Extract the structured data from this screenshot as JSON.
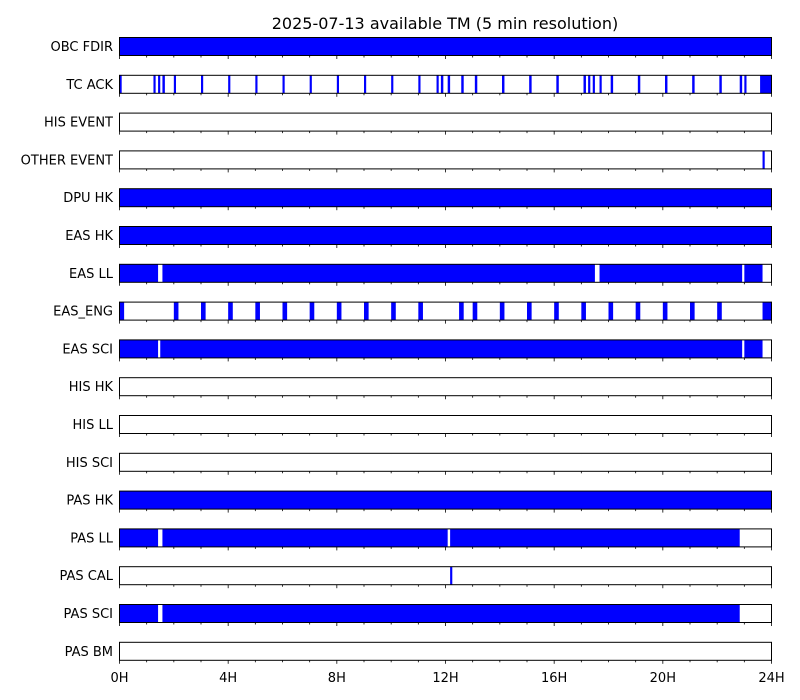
{
  "chart_data": {
    "type": "heatmap",
    "title": "2025-07-13 available TM (5 min resolution)",
    "x_unit": "hour",
    "xlim": [
      0,
      24
    ],
    "x_ticks": [
      0,
      4,
      8,
      12,
      16,
      20,
      24
    ],
    "x_tick_labels": [
      "0H",
      "4H",
      "8H",
      "12H",
      "16H",
      "20H",
      "24H"
    ],
    "colors": {
      "available": "#0000ff",
      "unavailable": "#ffffff",
      "border": "#000000"
    },
    "rows": [
      {
        "label": "OBC FDIR",
        "available": [
          [
            0,
            24
          ]
        ]
      },
      {
        "label": "TC ACK",
        "available": [
          [
            0.0,
            0.08
          ],
          [
            1.25,
            1.33
          ],
          [
            1.42,
            1.5
          ],
          [
            1.58,
            1.67
          ],
          [
            2.0,
            2.08
          ],
          [
            3.0,
            3.08
          ],
          [
            4.0,
            4.08
          ],
          [
            5.0,
            5.08
          ],
          [
            6.0,
            6.08
          ],
          [
            7.0,
            7.08
          ],
          [
            8.0,
            8.08
          ],
          [
            9.0,
            9.08
          ],
          [
            10.0,
            10.08
          ],
          [
            11.0,
            11.08
          ],
          [
            11.67,
            11.75
          ],
          [
            11.83,
            11.92
          ],
          [
            12.08,
            12.17
          ],
          [
            12.58,
            12.67
          ],
          [
            13.08,
            13.17
          ],
          [
            14.08,
            14.17
          ],
          [
            15.08,
            15.17
          ],
          [
            16.08,
            16.17
          ],
          [
            17.08,
            17.17
          ],
          [
            17.25,
            17.33
          ],
          [
            17.42,
            17.5
          ],
          [
            17.67,
            17.75
          ],
          [
            18.08,
            18.17
          ],
          [
            19.08,
            19.17
          ],
          [
            20.08,
            20.17
          ],
          [
            21.08,
            21.17
          ],
          [
            22.08,
            22.17
          ],
          [
            22.83,
            22.92
          ],
          [
            23.0,
            23.08
          ],
          [
            23.58,
            24.0
          ]
        ]
      },
      {
        "label": "HIS EVENT",
        "available": []
      },
      {
        "label": "OTHER EVENT",
        "available": [
          [
            23.67,
            23.75
          ]
        ]
      },
      {
        "label": "DPU HK",
        "available": [
          [
            0,
            24
          ]
        ]
      },
      {
        "label": "EAS HK",
        "available": [
          [
            0,
            24
          ]
        ]
      },
      {
        "label": "EAS LL",
        "available": [
          [
            0,
            1.42
          ],
          [
            1.58,
            17.5
          ],
          [
            17.67,
            22.92
          ],
          [
            23.0,
            23.67
          ]
        ]
      },
      {
        "label": "EAS_ENG",
        "available": [
          [
            0.0,
            0.17
          ],
          [
            2.0,
            2.17
          ],
          [
            3.0,
            3.17
          ],
          [
            4.0,
            4.17
          ],
          [
            5.0,
            5.17
          ],
          [
            6.0,
            6.17
          ],
          [
            7.0,
            7.17
          ],
          [
            8.0,
            8.17
          ],
          [
            9.0,
            9.17
          ],
          [
            10.0,
            10.17
          ],
          [
            11.0,
            11.17
          ],
          [
            12.5,
            12.67
          ],
          [
            13.0,
            13.17
          ],
          [
            14.0,
            14.17
          ],
          [
            15.0,
            15.17
          ],
          [
            16.0,
            16.17
          ],
          [
            17.0,
            17.17
          ],
          [
            18.0,
            18.17
          ],
          [
            19.0,
            19.17
          ],
          [
            20.0,
            20.17
          ],
          [
            21.0,
            21.17
          ],
          [
            22.0,
            22.17
          ],
          [
            23.67,
            24.0
          ]
        ]
      },
      {
        "label": "EAS SCI",
        "available": [
          [
            0,
            1.42
          ],
          [
            1.5,
            22.92
          ],
          [
            23.0,
            23.67
          ]
        ]
      },
      {
        "label": "HIS HK",
        "available": []
      },
      {
        "label": "HIS LL",
        "available": []
      },
      {
        "label": "HIS SCI",
        "available": []
      },
      {
        "label": "PAS HK",
        "available": [
          [
            0,
            24
          ]
        ]
      },
      {
        "label": "PAS LL",
        "available": [
          [
            0,
            1.42
          ],
          [
            1.58,
            12.08
          ],
          [
            12.17,
            22.83
          ]
        ]
      },
      {
        "label": "PAS CAL",
        "available": [
          [
            12.17,
            12.25
          ]
        ]
      },
      {
        "label": "PAS SCI",
        "available": [
          [
            0,
            1.42
          ],
          [
            1.58,
            22.83
          ]
        ]
      },
      {
        "label": "PAS BM",
        "available": []
      }
    ]
  }
}
